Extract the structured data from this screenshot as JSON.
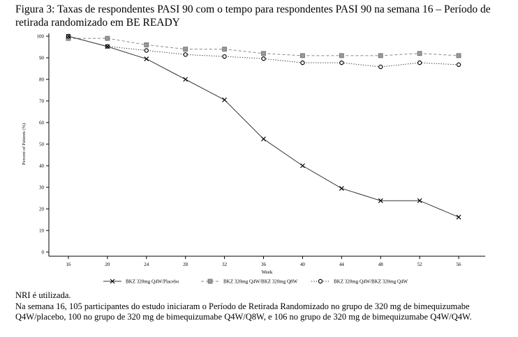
{
  "figure": {
    "title": "Figura 3: Taxas de respondentes PASI 90 com o tempo para respondentes PASI 90 na semana 16 – Período de retirada randomizado em BE READY"
  },
  "notes": [
    "NRI é utilizada.",
    "Na semana 16, 105 participantes do estudo iniciaram o Período de Retirada Randomizado no grupo de 320 mg de bimequizumabe Q4W/placebo, 100 no grupo de 320 mg de bimequizumabe Q4W/Q8W, e 106 no grupo de 320 mg de bimequizumabe Q4W/Q4W."
  ],
  "chart_data": {
    "type": "line",
    "xlabel": "Week",
    "ylabel": "Percent of Patients (%)",
    "x": [
      16,
      20,
      24,
      28,
      32,
      36,
      40,
      44,
      48,
      52,
      56
    ],
    "ylim": [
      0,
      100
    ],
    "yticks": [
      0,
      10,
      20,
      30,
      40,
      50,
      60,
      70,
      80,
      90,
      100
    ],
    "grid": false,
    "legend_position": "bottom",
    "series": [
      {
        "name": "BKZ 320mg Q4W/Placebo",
        "marker": "x",
        "line": "solid",
        "color": "#333333",
        "values": [
          100,
          95.2,
          89.5,
          80,
          70.5,
          52.4,
          40,
          29.5,
          23.8,
          23.8,
          16.2
        ]
      },
      {
        "name": "BKZ 320mg Q4W/BKZ 320mg Q8W",
        "marker": "square",
        "line": "dashed",
        "color": "#888888",
        "values": [
          99,
          99,
          96,
          94,
          94,
          92,
          91,
          91,
          91,
          92,
          91
        ]
      },
      {
        "name": "BKZ 320mg Q4W/BKZ 320mg Q4W",
        "marker": "circle",
        "line": "dotted",
        "color": "#222222",
        "values": [
          100,
          95.3,
          93.4,
          91.5,
          90.6,
          89.6,
          87.7,
          87.7,
          85.8,
          87.7,
          86.8
        ]
      }
    ]
  }
}
